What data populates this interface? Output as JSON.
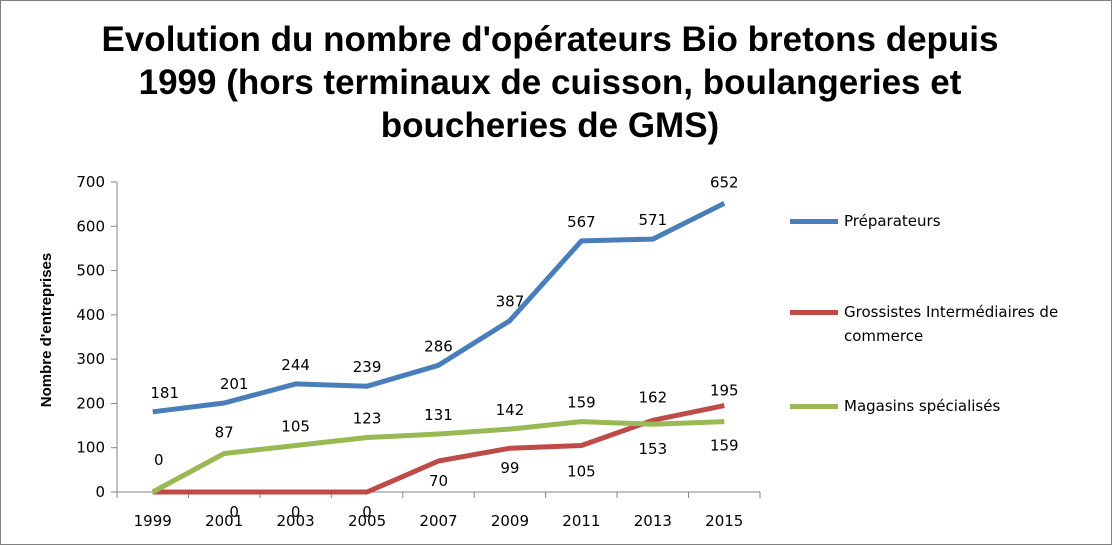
{
  "chart_data": {
    "type": "line",
    "title_lines": [
      "Evolution du nombre d'opérateurs Bio bretons depuis",
      "1999 (hors terminaux de cuisson, boulangeries et",
      "boucheries de GMS)"
    ],
    "xlabel": "",
    "ylabel": "Nombre d'entreprises",
    "ylim": [
      0,
      700
    ],
    "yticks": [
      "0",
      "100",
      "200",
      "300",
      "400",
      "500",
      "600",
      "700"
    ],
    "categories": [
      "1999",
      "2001",
      "2003",
      "2005",
      "2007",
      "2009",
      "2011",
      "2013",
      "2015"
    ],
    "grid": false,
    "legend_position": "right",
    "series": [
      {
        "name": "Préparateurs",
        "color": "#4a7ebb",
        "values": [
          181,
          201,
          244,
          239,
          286,
          387,
          567,
          571,
          652
        ],
        "labels": [
          "181",
          "201",
          "244",
          "239",
          "286",
          "387",
          "567",
          "571",
          "652"
        ]
      },
      {
        "name": "Grossistes Intermédiaires de commerce",
        "name_lines": [
          "Grossistes Intermédiaires de",
          "commerce"
        ],
        "color": "#be4b48",
        "values": [
          0,
          0,
          0,
          0,
          70,
          99,
          105,
          162,
          195
        ],
        "labels": [
          "0",
          "0",
          "0",
          "0",
          "70",
          "99",
          "105",
          "162",
          "195"
        ]
      },
      {
        "name": "Magasins spécialisés",
        "color": "#98b954",
        "values": [
          0,
          87,
          105,
          123,
          131,
          142,
          159,
          153,
          159
        ],
        "labels": [
          "0",
          "87",
          "105",
          "123",
          "131",
          "142",
          "159",
          "153",
          "159"
        ]
      }
    ]
  }
}
